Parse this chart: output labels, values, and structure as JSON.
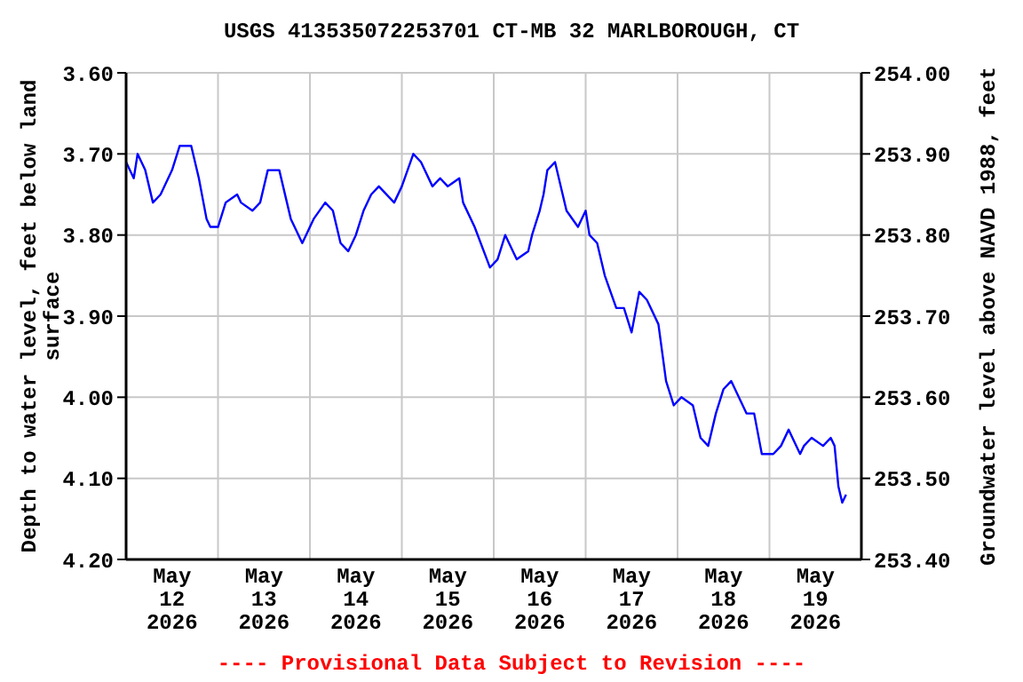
{
  "chart_data": {
    "type": "line",
    "title": "USGS 413535072253701 CT-MB 32 MARLBOROUGH, CT",
    "ylabel": "Depth to water level, feet below land surface",
    "y2label": "Groundwater level above NAVD 1988, feet",
    "annotations": [
      "---- Provisional Data Subject to Revision ----"
    ],
    "x": [
      "2026-05-12T00:00",
      "2026-05-12T02:00",
      "2026-05-12T03:00",
      "2026-05-12T05:00",
      "2026-05-12T06:00",
      "2026-05-12T07:00",
      "2026-05-12T09:00",
      "2026-05-12T12:00",
      "2026-05-12T14:00",
      "2026-05-12T17:00",
      "2026-05-12T19:00",
      "2026-05-12T21:00",
      "2026-05-12T22:00",
      "2026-05-13T00:00",
      "2026-05-13T02:00",
      "2026-05-13T05:00",
      "2026-05-13T06:00",
      "2026-05-13T09:00",
      "2026-05-13T11:00",
      "2026-05-13T13:00",
      "2026-05-13T16:00",
      "2026-05-13T17:00",
      "2026-05-13T19:00",
      "2026-05-13T22:00",
      "2026-05-13T23:00",
      "2026-05-14T01:00",
      "2026-05-14T04:00",
      "2026-05-14T06:00",
      "2026-05-14T08:00",
      "2026-05-14T10:00",
      "2026-05-14T12:00",
      "2026-05-14T14:00",
      "2026-05-14T16:00",
      "2026-05-14T18:00",
      "2026-05-14T22:00",
      "2026-05-15T00:00",
      "2026-05-15T03:00",
      "2026-05-15T05:00",
      "2026-05-15T08:00",
      "2026-05-15T10:00",
      "2026-05-15T12:00",
      "2026-05-15T15:00",
      "2026-05-15T16:00",
      "2026-05-15T19:00",
      "2026-05-15T23:00",
      "2026-05-16T01:00",
      "2026-05-16T03:00",
      "2026-05-16T06:00",
      "2026-05-16T09:00",
      "2026-05-16T10:00",
      "2026-05-16T12:00",
      "2026-05-16T13:00",
      "2026-05-16T14:00",
      "2026-05-16T16:00",
      "2026-05-16T18:00",
      "2026-05-16T19:00",
      "2026-05-16T22:00",
      "2026-05-17T00:00",
      "2026-05-17T01:00",
      "2026-05-17T03:00",
      "2026-05-17T05:00",
      "2026-05-17T08:00",
      "2026-05-17T10:00",
      "2026-05-17T12:00",
      "2026-05-17T14:00",
      "2026-05-17T16:00",
      "2026-05-17T19:00",
      "2026-05-17T21:00",
      "2026-05-17T23:00",
      "2026-05-18T01:00",
      "2026-05-18T04:00",
      "2026-05-18T06:00",
      "2026-05-18T08:00",
      "2026-05-18T10:00",
      "2026-05-18T12:00",
      "2026-05-18T14:00",
      "2026-05-18T16:00",
      "2026-05-18T18:00",
      "2026-05-18T20:00",
      "2026-05-18T22:00",
      "2026-05-19T01:00",
      "2026-05-19T03:00",
      "2026-05-19T05:00",
      "2026-05-19T06:00",
      "2026-05-19T08:00",
      "2026-05-19T09:00",
      "2026-05-19T11:00",
      "2026-05-19T14:00",
      "2026-05-19T16:00",
      "2026-05-19T17:00",
      "2026-05-19T18:00",
      "2026-05-19T19:00",
      "2026-05-19T20:00"
    ],
    "series": [
      {
        "color": "#0000ff",
        "values": [
          3.71,
          3.73,
          3.7,
          3.72,
          3.74,
          3.76,
          3.75,
          3.72,
          3.69,
          3.69,
          3.73,
          3.78,
          3.79,
          3.79,
          3.76,
          3.75,
          3.76,
          3.77,
          3.76,
          3.72,
          3.72,
          3.74,
          3.78,
          3.81,
          3.8,
          3.78,
          3.76,
          3.77,
          3.81,
          3.82,
          3.8,
          3.77,
          3.75,
          3.74,
          3.76,
          3.74,
          3.7,
          3.71,
          3.74,
          3.73,
          3.74,
          3.73,
          3.76,
          3.79,
          3.84,
          3.83,
          3.8,
          3.83,
          3.82,
          3.8,
          3.77,
          3.75,
          3.72,
          3.71,
          3.75,
          3.77,
          3.79,
          3.77,
          3.8,
          3.81,
          3.85,
          3.89,
          3.89,
          3.92,
          3.87,
          3.88,
          3.91,
          3.98,
          4.01,
          4.0,
          4.01,
          4.05,
          4.06,
          4.02,
          3.99,
          3.98,
          4.0,
          4.02,
          4.02,
          4.07,
          4.07,
          4.06,
          4.04,
          4.05,
          4.07,
          4.06,
          4.05,
          4.06,
          4.05,
          4.06,
          4.11,
          4.13,
          4.12
        ]
      }
    ],
    "xlim": [
      "2026-05-12T00:00",
      "2026-05-20T00:00"
    ],
    "xticks": [
      {
        "value": "2026-05-12T12:00",
        "label": "May\n12\n2026"
      },
      {
        "value": "2026-05-13T12:00",
        "label": "May\n13\n2026"
      },
      {
        "value": "2026-05-14T12:00",
        "label": "May\n14\n2026"
      },
      {
        "value": "2026-05-15T12:00",
        "label": "May\n15\n2026"
      },
      {
        "value": "2026-05-16T12:00",
        "label": "May\n16\n2026"
      },
      {
        "value": "2026-05-17T12:00",
        "label": "May\n17\n2026"
      },
      {
        "value": "2026-05-18T12:00",
        "label": "May\n18\n2026"
      },
      {
        "value": "2026-05-19T12:00",
        "label": "May\n19\n2026"
      },
      {
        "value": "2026-05-13T00:00",
        "label": null
      },
      {
        "value": "2026-05-14T00:00",
        "label": null
      },
      {
        "value": "2026-05-15T00:00",
        "label": null
      },
      {
        "value": "2026-05-16T00:00",
        "label": null
      },
      {
        "value": "2026-05-17T00:00",
        "label": null
      },
      {
        "value": "2026-05-18T00:00",
        "label": null
      },
      {
        "value": "2026-05-19T00:00",
        "label": null
      }
    ],
    "ylim": [
      4.2,
      3.6
    ],
    "yticks": [
      {
        "value": 3.6,
        "label": "3.60"
      },
      {
        "value": 3.7,
        "label": "3.70"
      },
      {
        "value": 3.8,
        "label": "3.80"
      },
      {
        "value": 3.9,
        "label": "3.90"
      },
      {
        "value": 4.0,
        "label": "4.00"
      },
      {
        "value": 4.1,
        "label": "4.10"
      },
      {
        "value": 4.2,
        "label": "4.20"
      }
    ],
    "y2lim": [
      253.4,
      254.0
    ],
    "y2ticks": [
      {
        "value": 253.4,
        "label": "253.40"
      },
      {
        "value": 253.5,
        "label": "253.50"
      },
      {
        "value": 253.6,
        "label": "253.60"
      },
      {
        "value": 253.7,
        "label": "253.70"
      },
      {
        "value": 253.8,
        "label": "253.80"
      },
      {
        "value": 253.9,
        "label": "253.90"
      },
      {
        "value": 254.0,
        "label": "254.00"
      }
    ],
    "grid": true,
    "legend": false,
    "marker": "none",
    "line_style": "solid"
  }
}
